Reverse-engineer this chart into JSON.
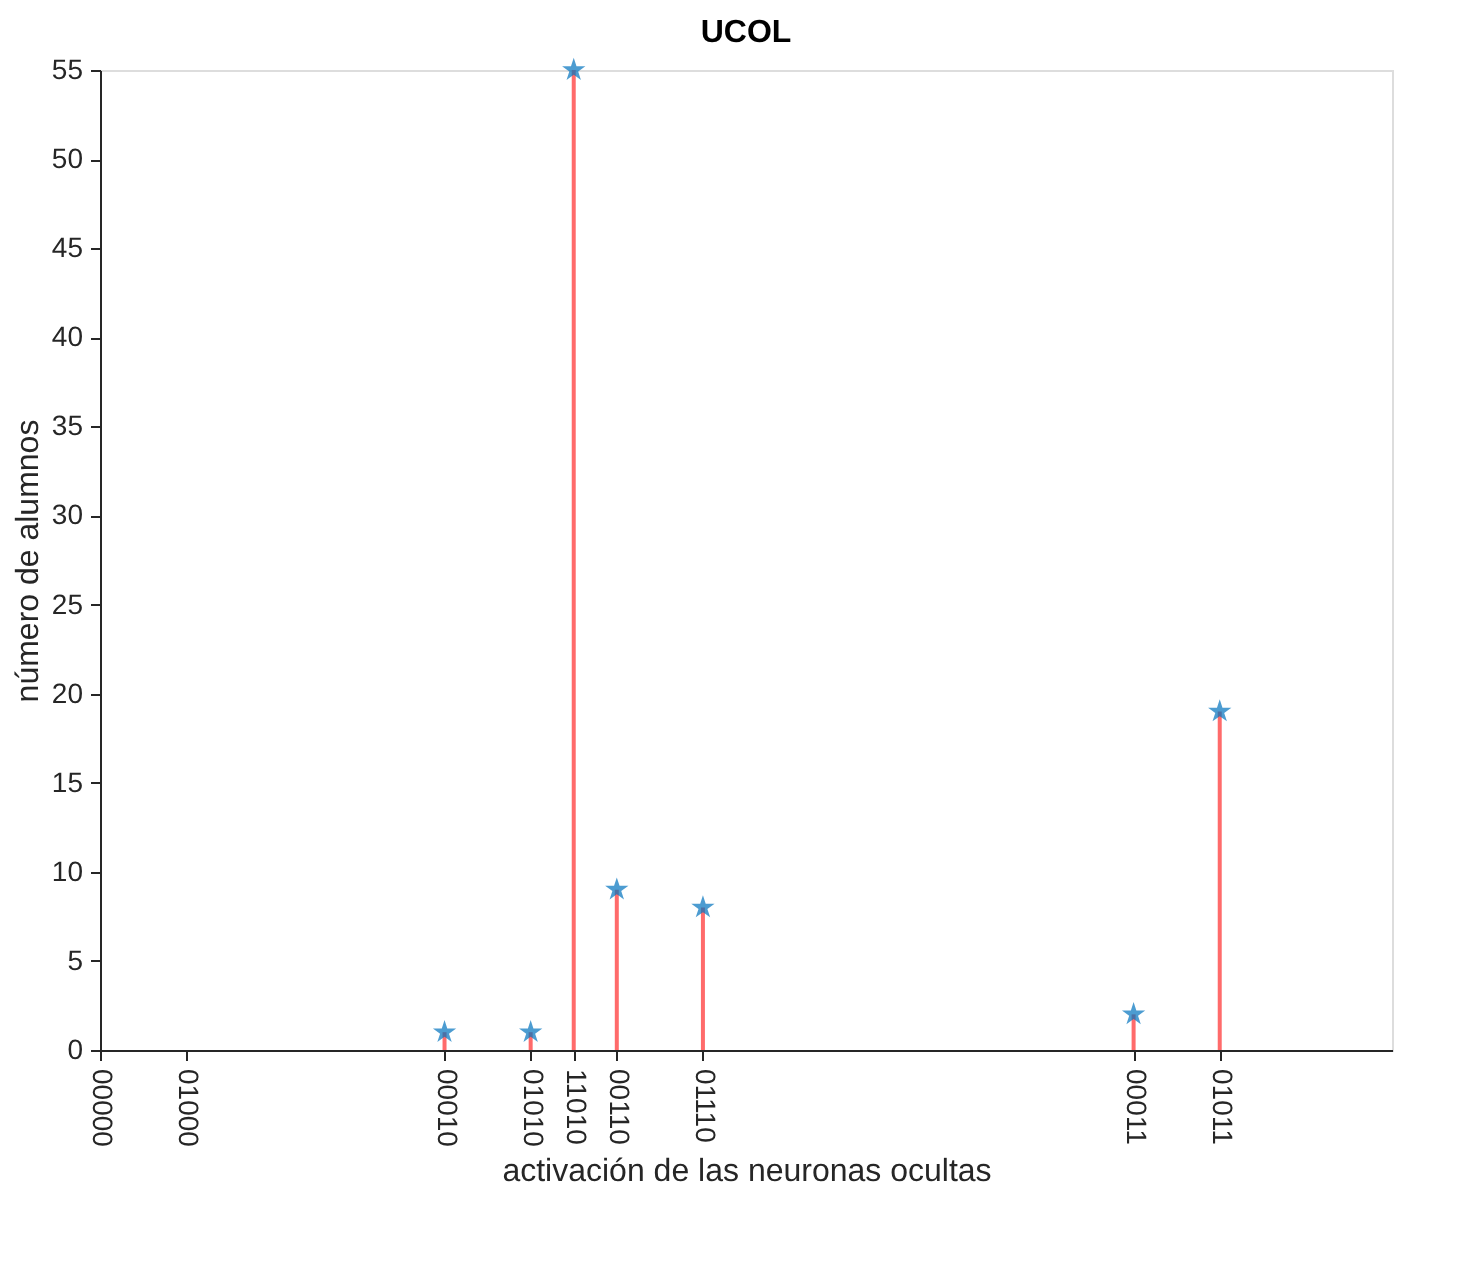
{
  "chart_data": {
    "type": "lollipop",
    "title": "UCOL",
    "xlabel": "activación de las neuronas ocultas",
    "ylabel": "número de alumnos",
    "categories": [
      "00000",
      null,
      "01000",
      null,
      null,
      null,
      null,
      null,
      "00010",
      null,
      "01010",
      "11010",
      "00110",
      null,
      "01110",
      null,
      null,
      null,
      null,
      null,
      null,
      null,
      null,
      null,
      "00011",
      null,
      "01011",
      null,
      null,
      null,
      null
    ],
    "series": [
      {
        "type": "bar",
        "color": "#ff6b6b",
        "values": [
          null,
          null,
          null,
          null,
          null,
          null,
          null,
          null,
          1,
          null,
          1,
          55,
          9,
          null,
          8,
          null,
          null,
          null,
          null,
          null,
          null,
          null,
          null,
          null,
          2,
          null,
          19,
          null,
          null,
          null,
          null
        ]
      },
      {
        "type": "scatter",
        "color": "#0072bd",
        "marker": "star",
        "values": [
          null,
          null,
          null,
          null,
          null,
          null,
          null,
          null,
          1,
          null,
          1,
          55,
          9,
          null,
          8,
          null,
          null,
          null,
          null,
          null,
          null,
          null,
          null,
          null,
          2,
          null,
          19,
          null,
          null,
          null,
          null
        ]
      }
    ],
    "ylim": [
      0,
      55
    ],
    "yticks": [
      0,
      5,
      10,
      15,
      20,
      25,
      30,
      35,
      40,
      45,
      50,
      55
    ],
    "grid": false
  }
}
